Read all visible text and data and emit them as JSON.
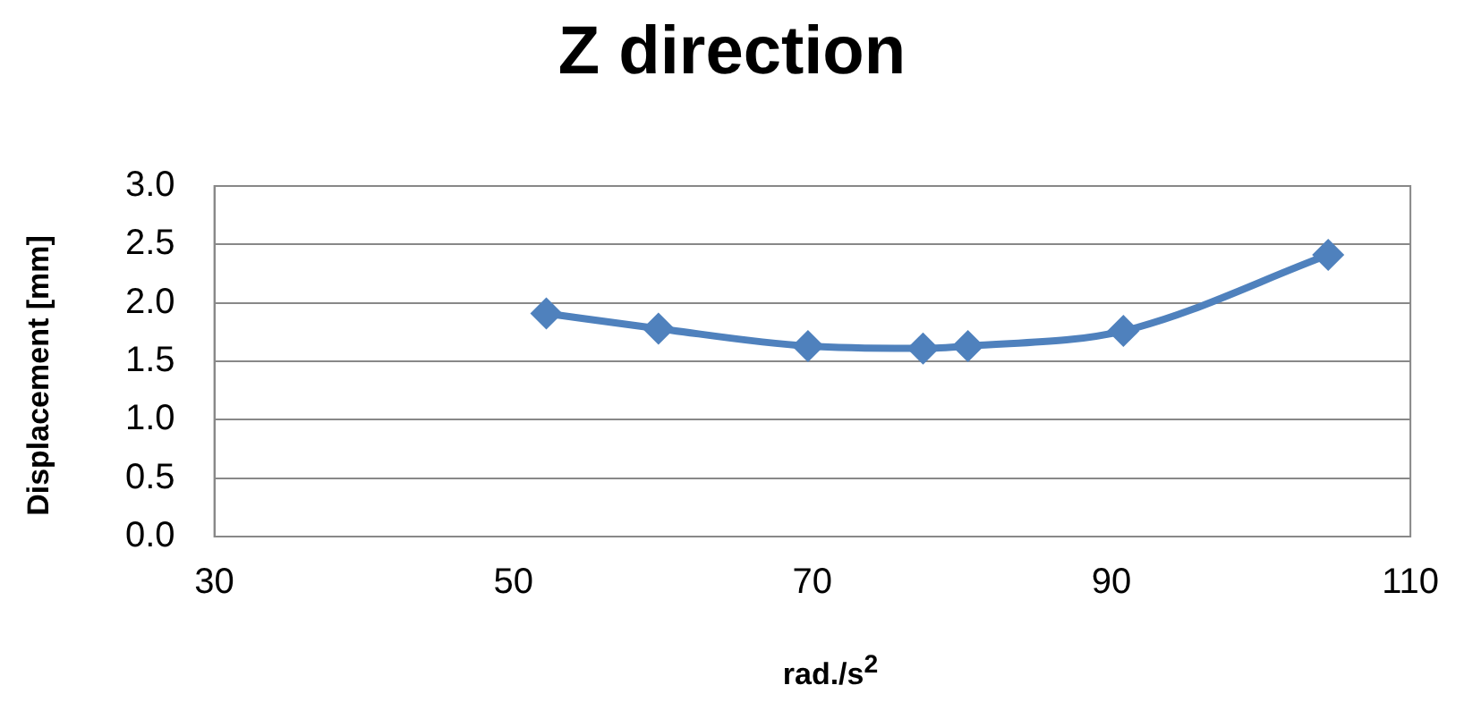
{
  "chart_data": {
    "type": "line",
    "title": "Z direction",
    "xlabel": "rad./s$^{2}$",
    "ylabel": "Displacement [mm]",
    "x": [
      52.2,
      59.7,
      69.7,
      77.4,
      80.4,
      90.8,
      104.5
    ],
    "series": [
      {
        "color": "#4f81bd",
        "values": [
          1.91,
          1.78,
          1.63,
          1.61,
          1.63,
          1.76,
          2.41
        ]
      }
    ],
    "xlim": [
      30,
      110
    ],
    "xticks": [
      30,
      50,
      70,
      90,
      110
    ],
    "ylim": [
      0,
      3
    ],
    "yticks": [
      {
        "value": 0,
        "label": "0.0"
      },
      {
        "value": 0.5,
        "label": "0.5"
      },
      {
        "value": 1,
        "label": "1.0"
      },
      {
        "value": 1.5,
        "label": "1.5"
      },
      {
        "value": 2,
        "label": "2.0"
      },
      {
        "value": 2.5,
        "label": "2.5"
      },
      {
        "value": 3,
        "label": "3.0"
      }
    ],
    "grid": "y",
    "legend": false,
    "marker": "diamond",
    "line_style": "solid"
  }
}
